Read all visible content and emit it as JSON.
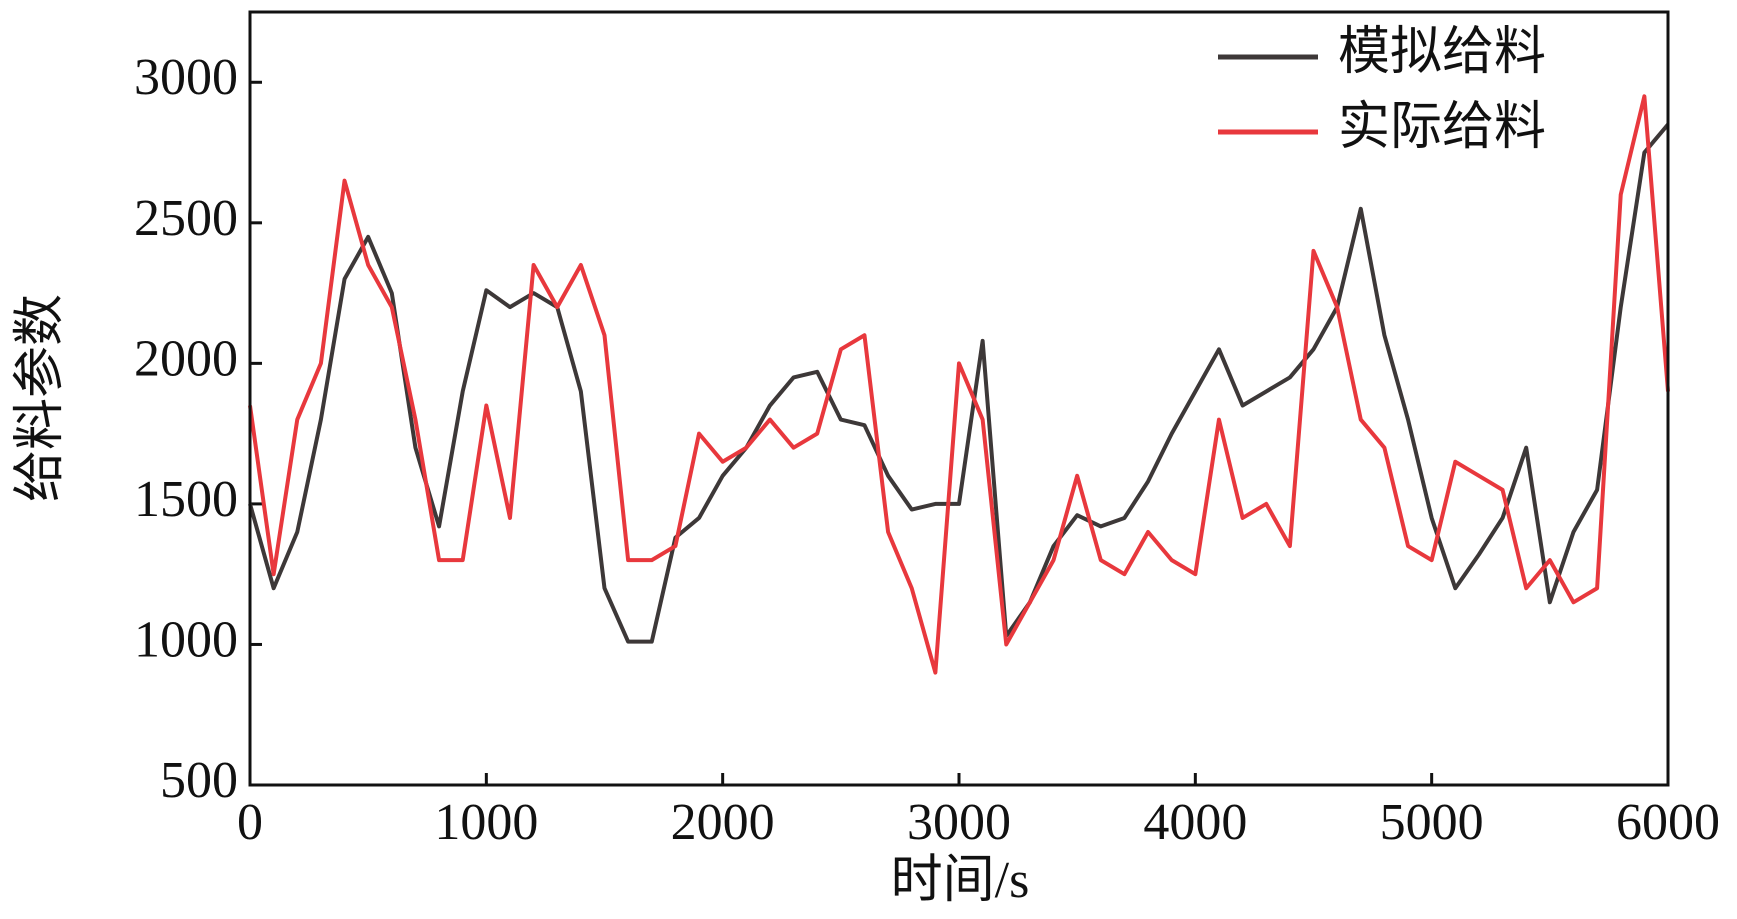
{
  "chart_data": {
    "type": "line",
    "xlabel": "时间/s",
    "ylabel": "给料参数",
    "x": [
      0,
      100,
      200,
      300,
      400,
      500,
      600,
      700,
      800,
      900,
      1000,
      1100,
      1200,
      1300,
      1400,
      1500,
      1600,
      1700,
      1800,
      1900,
      2000,
      2100,
      2200,
      2300,
      2400,
      2500,
      2600,
      2700,
      2800,
      2900,
      3000,
      3100,
      3200,
      3300,
      3400,
      3500,
      3600,
      3700,
      3800,
      3900,
      4000,
      4100,
      4200,
      4300,
      4400,
      4500,
      4600,
      4700,
      4800,
      4900,
      5000,
      5100,
      5200,
      5300,
      5400,
      5500,
      5600,
      5700,
      5800,
      5900,
      6000
    ],
    "series": [
      {
        "name": "模拟给料",
        "color": "#3d3838",
        "values": [
          1500,
          1200,
          1400,
          1800,
          2300,
          2450,
          2250,
          1700,
          1420,
          1900,
          2260,
          2200,
          2250,
          2200,
          1900,
          1200,
          1010,
          1010,
          1380,
          1450,
          1600,
          1700,
          1850,
          1950,
          1970,
          1800,
          1780,
          1600,
          1480,
          1500,
          1500,
          2080,
          1030,
          1150,
          1350,
          1460,
          1420,
          1450,
          1580,
          1750,
          1900,
          2050,
          1850,
          1900,
          1950,
          2050,
          2200,
          2550,
          2100,
          1800,
          1450,
          1200,
          1320,
          1450,
          1700,
          1150,
          1400,
          1550,
          2200,
          2750,
          2850
        ]
      },
      {
        "name": "实际给料",
        "color": "#e8383d",
        "values": [
          1850,
          1250,
          1800,
          2000,
          2650,
          2350,
          2200,
          1800,
          1300,
          1300,
          1850,
          1450,
          2350,
          2200,
          2350,
          2100,
          1300,
          1300,
          1350,
          1750,
          1650,
          1700,
          1800,
          1700,
          1750,
          2050,
          2100,
          1400,
          1200,
          900,
          2000,
          1800,
          1000,
          1150,
          1300,
          1600,
          1300,
          1250,
          1400,
          1300,
          1250,
          1800,
          1450,
          1500,
          1350,
          2400,
          2200,
          1800,
          1700,
          1350,
          1300,
          1650,
          1600,
          1550,
          1200,
          1300,
          1150,
          1200,
          2600,
          2950,
          1900
        ]
      }
    ],
    "xlim": [
      0,
      6000
    ],
    "xticks": [
      0,
      1000,
      2000,
      3000,
      4000,
      5000,
      6000
    ],
    "ylim": [
      500,
      3250
    ],
    "yticks": [
      500,
      1000,
      1500,
      2000,
      2500,
      3000
    ],
    "legend": "upper right"
  }
}
